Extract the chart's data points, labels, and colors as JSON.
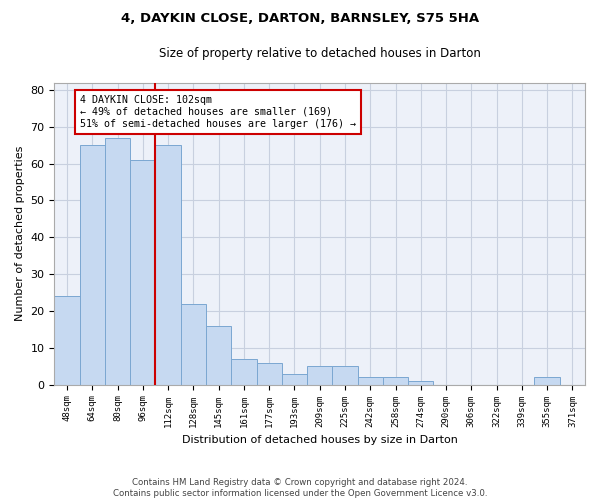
{
  "title": "4, DAYKIN CLOSE, DARTON, BARNSLEY, S75 5HA",
  "subtitle": "Size of property relative to detached houses in Darton",
  "xlabel": "Distribution of detached houses by size in Darton",
  "ylabel": "Number of detached properties",
  "categories": [
    "48sqm",
    "64sqm",
    "80sqm",
    "96sqm",
    "112sqm",
    "128sqm",
    "145sqm",
    "161sqm",
    "177sqm",
    "193sqm",
    "209sqm",
    "225sqm",
    "242sqm",
    "258sqm",
    "274sqm",
    "290sqm",
    "306sqm",
    "322sqm",
    "339sqm",
    "355sqm",
    "371sqm"
  ],
  "values": [
    24,
    65,
    67,
    61,
    65,
    22,
    16,
    7,
    6,
    3,
    5,
    5,
    2,
    2,
    1,
    0,
    0,
    0,
    0,
    2,
    0
  ],
  "bar_color": "#c6d9f1",
  "bar_edge_color": "#7ba7d1",
  "grid_color": "#c8d0df",
  "background_color": "#edf1f9",
  "vline_x": 3.5,
  "vline_color": "#cc0000",
  "annotation_text": "4 DAYKIN CLOSE: 102sqm\n← 49% of detached houses are smaller (169)\n51% of semi-detached houses are larger (176) →",
  "annotation_box_color": "#ffffff",
  "annotation_box_edge_color": "#cc0000",
  "ylim": [
    0,
    82
  ],
  "yticks": [
    0,
    10,
    20,
    30,
    40,
    50,
    60,
    70,
    80
  ],
  "footer": "Contains HM Land Registry data © Crown copyright and database right 2024.\nContains public sector information licensed under the Open Government Licence v3.0.",
  "title_fontsize": 9.5,
  "subtitle_fontsize": 8.5,
  "xlabel_fontsize": 8,
  "ylabel_fontsize": 8
}
